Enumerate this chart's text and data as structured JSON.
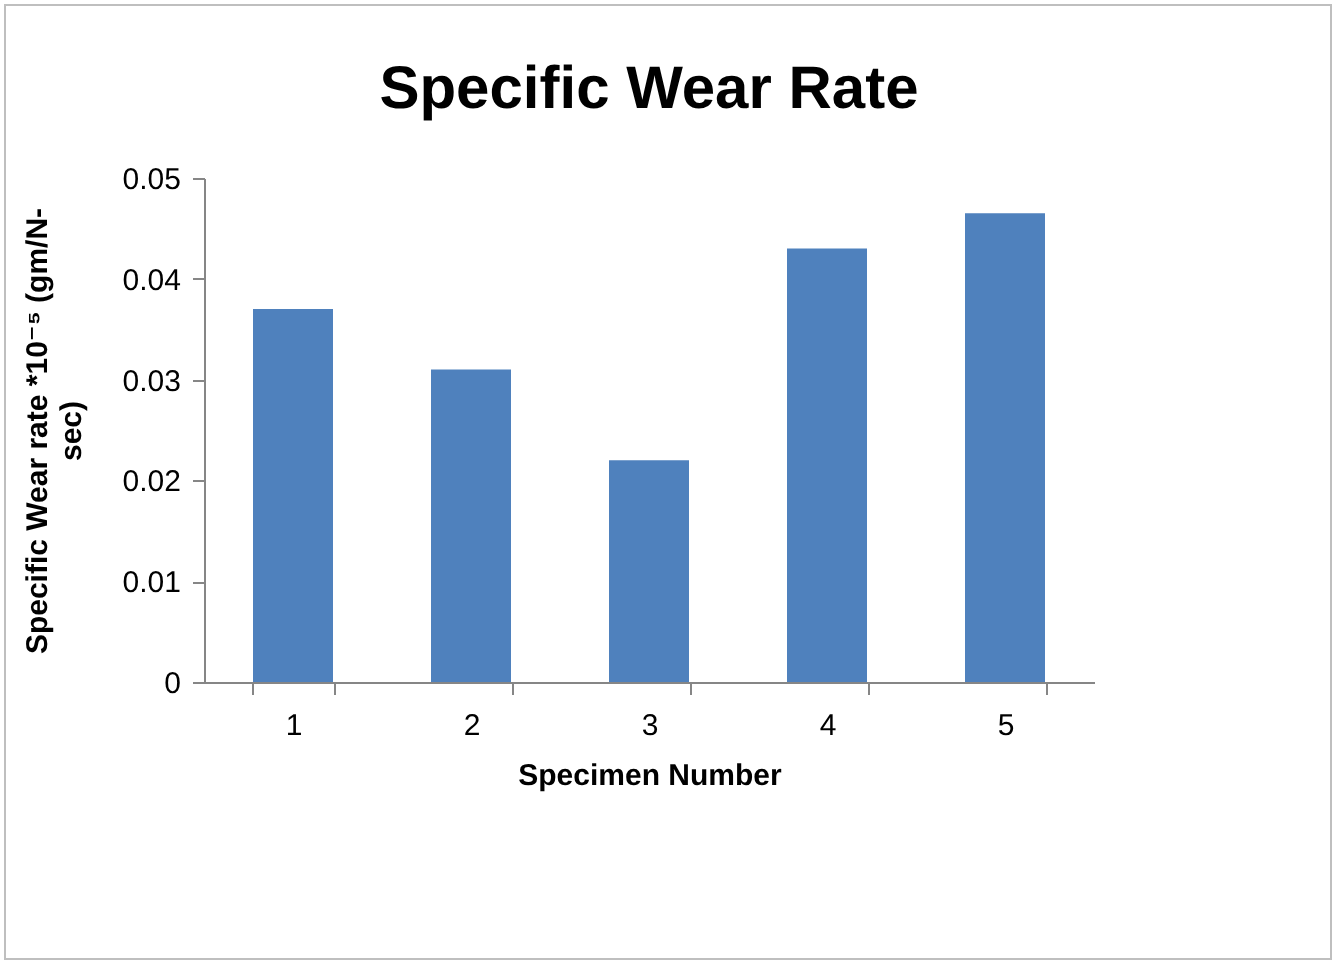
{
  "chart_data": {
    "type": "bar",
    "title": "Specific Wear Rate",
    "xlabel": "Specimen Number",
    "ylabel": "Specific Wear rate *10⁻⁵ (gm/N-sec)",
    "categories": [
      "1",
      "2",
      "3",
      "4",
      "5"
    ],
    "values": [
      0.037,
      0.031,
      0.022,
      0.043,
      0.0465
    ],
    "color": "#4f81bd",
    "ylim": [
      0,
      0.05
    ],
    "yticks": [
      0,
      0.01,
      0.02,
      0.03,
      0.04,
      0.05
    ],
    "grid": false
  }
}
